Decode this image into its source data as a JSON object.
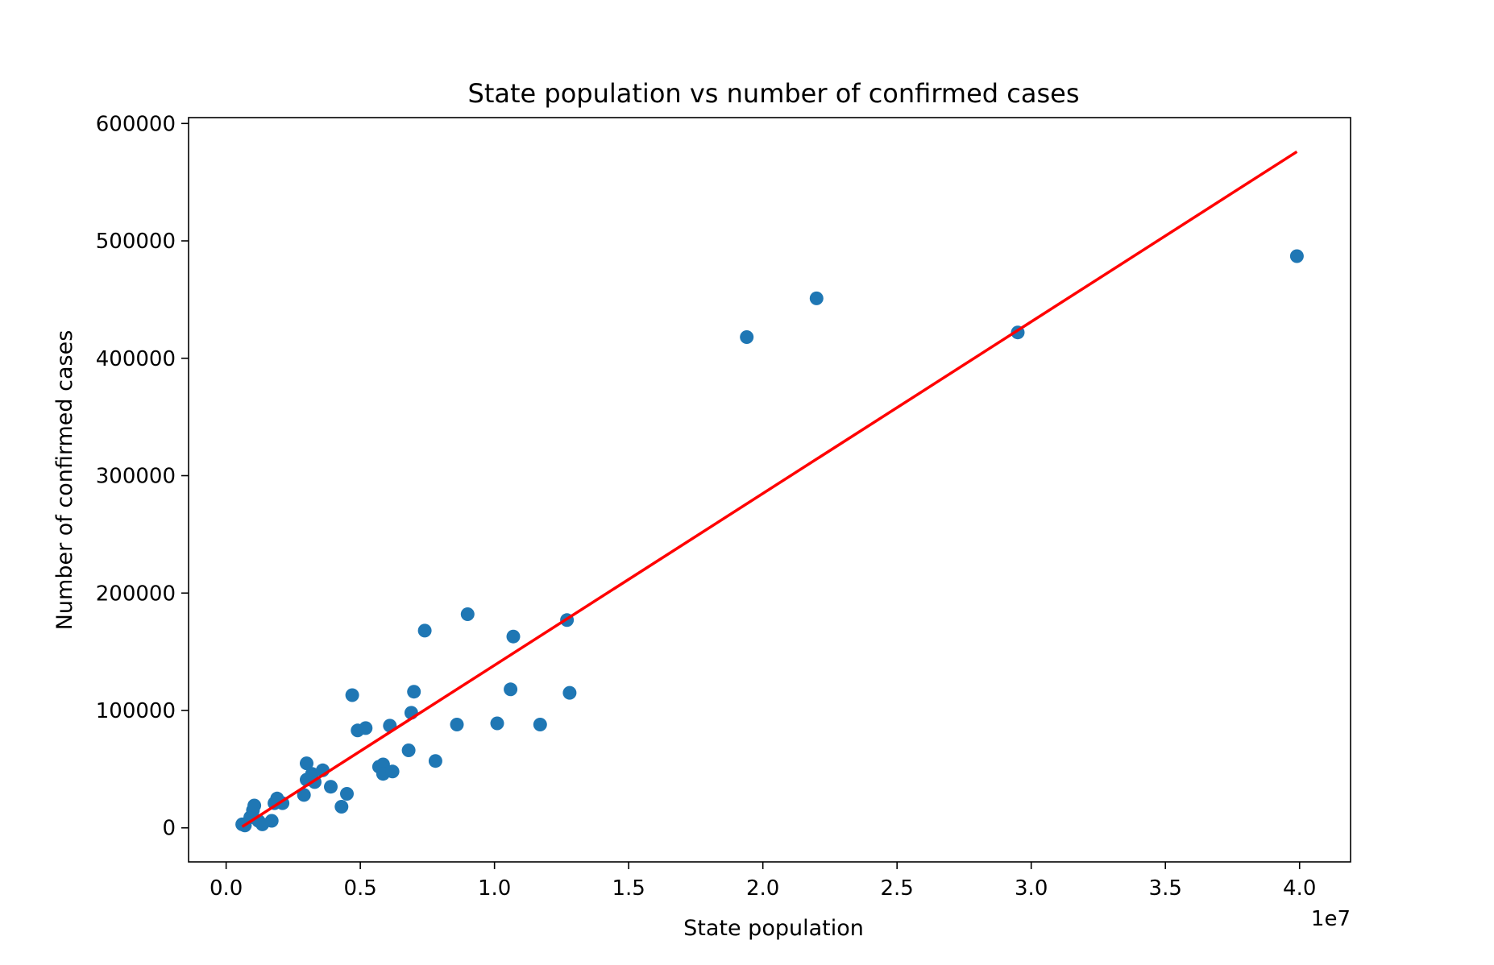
{
  "chart_data": {
    "type": "scatter",
    "title": "State population vs number of confirmed cases",
    "xlabel": "State population",
    "ylabel": "Number of confirmed cases",
    "x_offset_label": "1e7",
    "x_unit_multiplier": 10000000,
    "xlim": [
      -0.14,
      4.19
    ],
    "ylim": [
      -29000,
      605000
    ],
    "x_ticks": [
      0.0,
      0.5,
      1.0,
      1.5,
      2.0,
      2.5,
      3.0,
      3.5,
      4.0
    ],
    "x_tick_labels": [
      "0.0",
      "0.5",
      "1.0",
      "1.5",
      "2.0",
      "2.5",
      "3.0",
      "3.5",
      "4.0"
    ],
    "y_ticks": [
      0,
      100000,
      200000,
      300000,
      400000,
      500000,
      600000
    ],
    "y_tick_labels": [
      "0",
      "100000",
      "200000",
      "300000",
      "400000",
      "500000",
      "600000"
    ],
    "grid": false,
    "colors": {
      "points": "#1f77b4",
      "fit_line": "#ff0000",
      "axes": "#000000"
    },
    "series": [
      {
        "kind": "scatter",
        "x": [
          0.06,
          0.07,
          0.09,
          0.1,
          0.105,
          0.12,
          0.135,
          0.17,
          0.18,
          0.19,
          0.21,
          0.29,
          0.3,
          0.3,
          0.32,
          0.33,
          0.36,
          0.39,
          0.43,
          0.45,
          0.47,
          0.49,
          0.52,
          0.57,
          0.585,
          0.585,
          0.61,
          0.62,
          0.68,
          0.69,
          0.7,
          0.74,
          0.78,
          0.86,
          0.9,
          1.01,
          1.06,
          1.07,
          1.17,
          1.27,
          1.28,
          1.94,
          2.2,
          2.95,
          3.99
        ],
        "y": [
          3000,
          2000,
          9000,
          15000,
          19000,
          6000,
          3000,
          6000,
          21000,
          25000,
          21000,
          28000,
          55000,
          41000,
          46000,
          39000,
          49000,
          35000,
          18000,
          29000,
          113000,
          83000,
          85000,
          52000,
          54000,
          46000,
          87000,
          48000,
          66000,
          98000,
          116000,
          168000,
          57000,
          88000,
          182000,
          89000,
          118000,
          163000,
          88000,
          177000,
          115000,
          418000,
          451000,
          422000,
          487000
        ]
      },
      {
        "kind": "line",
        "x": [
          0.06,
          3.99
        ],
        "y": [
          1000,
          576000
        ]
      }
    ]
  }
}
